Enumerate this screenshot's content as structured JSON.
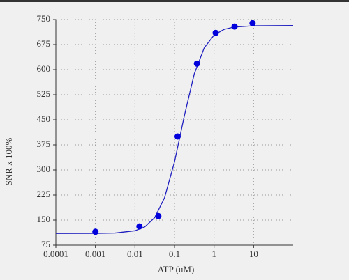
{
  "chart_data": {
    "type": "scatter",
    "x_label": "ATP (uM)",
    "y_label": "SNR x 100%",
    "xscale": "log",
    "xlim": [
      0.0001,
      100
    ],
    "xticks": [
      0.0001,
      0.001,
      0.01,
      0.1,
      1,
      10
    ],
    "ylim": [
      75,
      750
    ],
    "yticks": [
      75,
      150,
      225,
      300,
      375,
      450,
      525,
      600,
      675,
      750
    ],
    "grid": true,
    "series": [
      {
        "kind": "points",
        "color": "#0000dd",
        "x": [
          0.001,
          0.013,
          0.039,
          0.12,
          0.37,
          1.1,
          3.3,
          9.4
        ],
        "values": [
          115,
          131,
          162,
          400,
          618,
          710,
          729,
          739
        ]
      },
      {
        "kind": "line",
        "color": "#2020c0",
        "x": [
          0.0001,
          0.001,
          0.00316,
          0.01,
          0.0178,
          0.0316,
          0.0562,
          0.1,
          0.178,
          0.316,
          0.562,
          1,
          1.78,
          3.16,
          10,
          100
        ],
        "values": [
          110,
          110.2,
          111.3,
          118.1,
          129.8,
          157.5,
          217.5,
          324,
          462.8,
          587.3,
          664.8,
          703.5,
          720.3,
          727.3,
          731.3,
          732
        ]
      }
    ]
  }
}
